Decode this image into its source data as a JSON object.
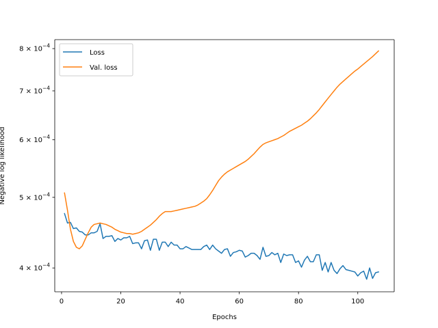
{
  "chart_data": {
    "type": "line",
    "title": "",
    "xlabel": "Epochs",
    "ylabel": "Negative log likelihood",
    "yscale": "log",
    "xlim": [
      -2.3,
      112.3
    ],
    "ylim": [
      0.000371,
      0.000823
    ],
    "xticks": [
      0,
      20,
      40,
      60,
      80,
      100
    ],
    "xtick_labels": [
      "0",
      "20",
      "40",
      "60",
      "80",
      "100"
    ],
    "yticks": [
      0.0004,
      0.0005,
      0.0006,
      0.0007,
      0.0008
    ],
    "ytick_labels": [
      {
        "mant": "4",
        "exp": "−4"
      },
      {
        "mant": "5",
        "exp": "−4"
      },
      {
        "mant": "6",
        "exp": "−4"
      },
      {
        "mant": "7",
        "exp": "−4"
      },
      {
        "mant": "8",
        "exp": "−4"
      }
    ],
    "grid": false,
    "legend_position": "top-left",
    "series": [
      {
        "name": "Loss",
        "color": "#1f77b4",
        "x": [
          1,
          2,
          3,
          4,
          5,
          6,
          7,
          8,
          9,
          10,
          11,
          12,
          13,
          14,
          15,
          16,
          17,
          18,
          19,
          20,
          21,
          22,
          23,
          24,
          25,
          26,
          27,
          28,
          29,
          30,
          31,
          32,
          33,
          34,
          35,
          36,
          37,
          38,
          39,
          40,
          41,
          42,
          43,
          44,
          45,
          46,
          47,
          48,
          49,
          50,
          51,
          52,
          53,
          54,
          55,
          56,
          57,
          58,
          59,
          60,
          61,
          62,
          63,
          64,
          65,
          66,
          67,
          68,
          69,
          70,
          71,
          72,
          73,
          74,
          75,
          76,
          77,
          78,
          79,
          80,
          81,
          82,
          83,
          84,
          85,
          86,
          87,
          88,
          89,
          90,
          91,
          92,
          93,
          94,
          95,
          96,
          97,
          98,
          99,
          100,
          101,
          102,
          103,
          104,
          105,
          106,
          107
        ],
        "values": [
          0.000475,
          0.000461,
          0.000462,
          0.000453,
          0.000454,
          0.000449,
          0.000448,
          0.000444,
          0.000444,
          0.000447,
          0.000447,
          0.000449,
          0.00046,
          0.000439,
          0.000442,
          0.000442,
          0.000443,
          0.000435,
          0.000439,
          0.000437,
          0.00044,
          0.00044,
          0.000442,
          0.000432,
          0.000433,
          0.000433,
          0.000425,
          0.000436,
          0.000437,
          0.000423,
          0.000438,
          0.000438,
          0.000423,
          0.000434,
          0.000434,
          0.000428,
          0.000434,
          0.00043,
          0.00043,
          0.000425,
          0.000425,
          0.000428,
          0.000426,
          0.000424,
          0.000424,
          0.000424,
          0.000424,
          0.000428,
          0.00043,
          0.000424,
          0.00043,
          0.000425,
          0.000422,
          0.000419,
          0.000424,
          0.000425,
          0.000415,
          0.00042,
          0.000421,
          0.000423,
          0.000422,
          0.000414,
          0.000416,
          0.000419,
          0.000419,
          0.000416,
          0.000411,
          0.000427,
          0.000415,
          0.000416,
          0.00042,
          0.000417,
          0.000419,
          0.000407,
          0.000418,
          0.000416,
          0.000417,
          0.000417,
          0.000407,
          0.000409,
          0.000401,
          0.00041,
          0.000415,
          0.000408,
          0.000408,
          0.000417,
          0.000417,
          0.000397,
          0.000407,
          0.000395,
          0.000407,
          0.000397,
          0.000393,
          0.000399,
          0.000403,
          0.000398,
          0.000397,
          0.000396,
          0.000395,
          0.00039,
          0.000394,
          0.000396,
          0.000386,
          0.0004,
          0.000387,
          0.000394,
          0.000395
        ]
      },
      {
        "name": "Val. loss",
        "color": "#ff7f0e",
        "x": [
          1,
          2,
          3,
          4,
          5,
          6,
          7,
          8,
          9,
          10,
          11,
          12,
          13,
          14,
          15,
          16,
          17,
          18,
          19,
          20,
          21,
          22,
          23,
          24,
          25,
          26,
          27,
          28,
          29,
          30,
          31,
          32,
          33,
          34,
          35,
          36,
          37,
          38,
          39,
          40,
          41,
          42,
          43,
          44,
          45,
          46,
          47,
          48,
          49,
          50,
          51,
          52,
          53,
          54,
          55,
          56,
          57,
          58,
          59,
          60,
          61,
          62,
          63,
          64,
          65,
          66,
          67,
          68,
          69,
          70,
          71,
          72,
          73,
          74,
          75,
          76,
          77,
          78,
          79,
          80,
          81,
          82,
          83,
          84,
          85,
          86,
          87,
          88,
          89,
          90,
          91,
          92,
          93,
          94,
          95,
          96,
          97,
          98,
          99,
          100,
          101,
          102,
          103,
          104,
          105,
          106,
          107
        ],
        "values": [
          0.000507,
          0.00048,
          0.000452,
          0.000435,
          0.000427,
          0.000425,
          0.000429,
          0.000438,
          0.000447,
          0.000455,
          0.000459,
          0.00046,
          0.000461,
          0.00046,
          0.000459,
          0.000457,
          0.000455,
          0.000452,
          0.00045,
          0.000448,
          0.000447,
          0.000446,
          0.000446,
          0.000445,
          0.000446,
          0.000447,
          0.000449,
          0.000452,
          0.000455,
          0.000458,
          0.000462,
          0.000466,
          0.000471,
          0.000475,
          0.000478,
          0.000478,
          0.000478,
          0.000479,
          0.00048,
          0.000481,
          0.000482,
          0.000483,
          0.000484,
          0.000485,
          0.000486,
          0.000488,
          0.000491,
          0.000494,
          0.000498,
          0.000504,
          0.000511,
          0.000519,
          0.000527,
          0.000533,
          0.000538,
          0.000542,
          0.000545,
          0.000548,
          0.000551,
          0.000554,
          0.000557,
          0.00056,
          0.000564,
          0.000569,
          0.000574,
          0.00058,
          0.000586,
          0.000591,
          0.000594,
          0.000596,
          0.000598,
          0.0006,
          0.000602,
          0.000605,
          0.000608,
          0.000612,
          0.000616,
          0.000619,
          0.000622,
          0.000625,
          0.000628,
          0.000632,
          0.000636,
          0.000641,
          0.000647,
          0.000653,
          0.00066,
          0.000668,
          0.000676,
          0.000684,
          0.000692,
          0.0007,
          0.000708,
          0.000715,
          0.000721,
          0.000727,
          0.000733,
          0.000739,
          0.000745,
          0.00075,
          0.000756,
          0.000762,
          0.000768,
          0.000774,
          0.00078,
          0.000787,
          0.000794
        ]
      }
    ]
  }
}
